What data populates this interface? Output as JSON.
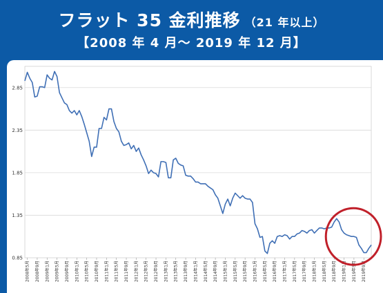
{
  "header": {
    "title": "フラット 35 金利推移",
    "title_suffix": "（21 年以上）",
    "period": "【2008 年 4 月～ 2019 年 12 月】"
  },
  "colors": {
    "frame": "#0c5aa6",
    "line": "#3f6fb5",
    "grid": "#d9d9d9",
    "highlight": "#c0202a"
  },
  "chart_data": {
    "type": "line",
    "title": "",
    "xlabel": "",
    "ylabel": "",
    "ylim": [
      0.85,
      3.1
    ],
    "yticks": [
      0.85,
      1.35,
      1.85,
      2.35,
      2.85
    ],
    "ytick_labels": [
      "0.85",
      "1.35",
      "1.85",
      "2.35",
      "2.85"
    ],
    "grid": true,
    "x_tick_labels": [
      "2008年5月",
      "2008年9月",
      "2009年1月",
      "2009年5月",
      "2009年9月",
      "2010年1月",
      "2010年5月",
      "2010年9月",
      "2011年1月",
      "2011年5月",
      "2011年9月",
      "2012年1月",
      "2012年5月",
      "2012年9月",
      "2013年1月",
      "2013年5月",
      "2013年9月",
      "2014年1月",
      "2014年5月",
      "2014年9月",
      "2015年1月",
      "2015年5月",
      "2015年9月",
      "2016年1月",
      "2016年5月",
      "2016年9月",
      "2017年1月",
      "2017年5月",
      "2017年9月",
      "2018年1月",
      "2018年5月",
      "2018年9月",
      "2019年1月",
      "2019年5月",
      "2019年9月"
    ],
    "x_start": "2008-04",
    "series": [
      {
        "name": "",
        "values": [
          2.93,
          3.03,
          2.96,
          2.91,
          2.74,
          2.75,
          2.86,
          2.86,
          2.85,
          3.0,
          2.96,
          2.94,
          3.04,
          2.98,
          2.79,
          2.73,
          2.67,
          2.65,
          2.58,
          2.55,
          2.58,
          2.53,
          2.58,
          2.51,
          2.42,
          2.32,
          2.22,
          2.04,
          2.15,
          2.15,
          2.37,
          2.37,
          2.5,
          2.47,
          2.6,
          2.6,
          2.45,
          2.37,
          2.33,
          2.22,
          2.17,
          2.18,
          2.2,
          2.13,
          2.17,
          2.1,
          2.14,
          2.06,
          2.0,
          1.93,
          1.84,
          1.88,
          1.85,
          1.84,
          1.8,
          1.98,
          1.98,
          1.97,
          1.79,
          1.79,
          2.0,
          2.02,
          1.96,
          1.94,
          1.93,
          1.82,
          1.81,
          1.81,
          1.78,
          1.74,
          1.74,
          1.72,
          1.72,
          1.72,
          1.69,
          1.67,
          1.65,
          1.59,
          1.55,
          1.46,
          1.37,
          1.48,
          1.54,
          1.46,
          1.55,
          1.61,
          1.58,
          1.55,
          1.58,
          1.55,
          1.54,
          1.54,
          1.5,
          1.25,
          1.19,
          1.09,
          1.1,
          0.93,
          0.9,
          1.02,
          1.05,
          1.02,
          1.1,
          1.11,
          1.1,
          1.12,
          1.11,
          1.07,
          1.1,
          1.1,
          1.13,
          1.14,
          1.17,
          1.16,
          1.14,
          1.17,
          1.18,
          1.14,
          1.17,
          1.2,
          1.2,
          1.19,
          1.2,
          1.2,
          1.21,
          1.27,
          1.31,
          1.27,
          1.18,
          1.14,
          1.12,
          1.11,
          1.1,
          1.1,
          1.09,
          1.0,
          0.96,
          0.91,
          0.91,
          0.96,
          1.0
        ]
      }
    ],
    "annotation": "circle highlighting 2018年9月 – 2019年12月"
  }
}
